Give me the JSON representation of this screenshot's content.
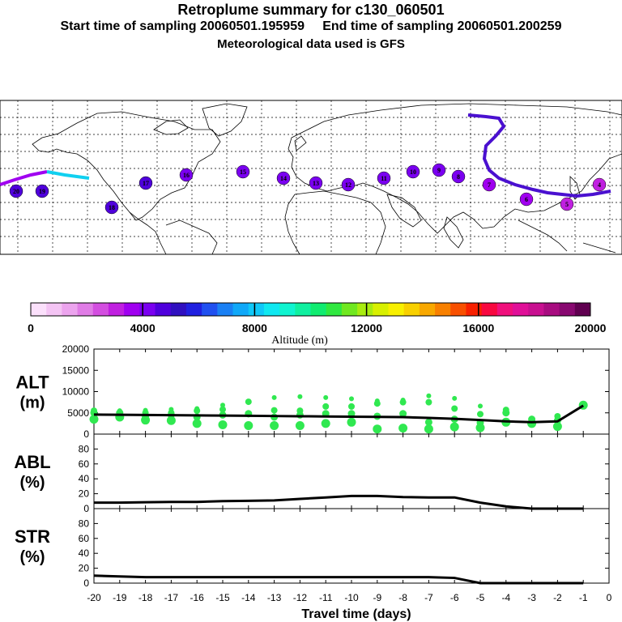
{
  "header": {
    "title": "Retroplume summary for c130_060501",
    "sampling": "Start time of sampling 20060501.195959     End time of sampling 20060501.200259",
    "met": "Meteorological data used is GFS"
  },
  "colorbar": {
    "label": "Altitude (m)",
    "ticks": [
      "0",
      "4000",
      "8000",
      "12000",
      "16000",
      "20000"
    ],
    "colors": [
      "#fbe0fb",
      "#f4c4f4",
      "#eca4ee",
      "#e07ce6",
      "#d34ee0",
      "#c020e0",
      "#a000f0",
      "#7a00f0",
      "#4f00dc",
      "#3010c0",
      "#2020e0",
      "#2050f0",
      "#1a80f4",
      "#10a8f8",
      "#10c8f8",
      "#10e8f0",
      "#10f4d0",
      "#10f0a0",
      "#10ec70",
      "#30e840",
      "#70e820",
      "#a8ec10",
      "#d8f000",
      "#f8f000",
      "#f8d000",
      "#f8a800",
      "#f88000",
      "#f85000",
      "#f82000",
      "#f80840",
      "#f0107c",
      "#e01098",
      "#c81090",
      "#a80c80",
      "#880870",
      "#600050"
    ]
  },
  "chart_data": [
    {
      "type": "line",
      "panel": "ALT",
      "ylabel_lines": [
        "ALT",
        "(m)"
      ],
      "ylim": [
        0,
        20000
      ],
      "yticks": [
        "0",
        "5000",
        "10000",
        "15000",
        "20000"
      ],
      "x": [
        -20,
        -19,
        -18,
        -17,
        -16,
        -15,
        -14,
        -13,
        -12,
        -11,
        -10,
        -9,
        -8,
        -7,
        -6,
        -5,
        -4,
        -3,
        -2,
        -1
      ],
      "series": [
        {
          "name": "mean altitude",
          "values": [
            4600,
            4550,
            4500,
            4450,
            4400,
            4350,
            4300,
            4250,
            4200,
            4150,
            4100,
            4050,
            4000,
            3800,
            3600,
            3300,
            3000,
            2800,
            3000,
            6700
          ]
        }
      ],
      "cluster_altitudes": [
        [
          3500,
          5000,
          5500,
          4000
        ],
        [
          4000,
          5000,
          4500,
          5500
        ],
        [
          3300,
          4200,
          5000,
          5600
        ],
        [
          3200,
          4500,
          5000,
          5800
        ],
        [
          2500,
          4000,
          5500,
          6000
        ],
        [
          2200,
          4500,
          5800,
          6800
        ],
        [
          2000,
          4800,
          7600,
          4500
        ],
        [
          2000,
          4000,
          5600,
          8600
        ],
        [
          2000,
          4500,
          5500,
          8800
        ],
        [
          2500,
          4800,
          6500,
          8600
        ],
        [
          2800,
          4800,
          6500,
          8300
        ],
        [
          1200,
          4200,
          7200,
          7800
        ],
        [
          1400,
          4800,
          7500,
          8000
        ],
        [
          1200,
          2800,
          7500,
          9000
        ],
        [
          1700,
          3500,
          6000,
          8400
        ],
        [
          1500,
          2700,
          4700,
          6600
        ],
        [
          2800,
          5000,
          5700
        ],
        [
          2500,
          3500
        ],
        [
          1800,
          3200,
          4200
        ],
        [
          6800
        ]
      ]
    },
    {
      "type": "line",
      "panel": "ABL",
      "ylabel_lines": [
        "ABL",
        "(%)"
      ],
      "ylim": [
        0,
        100
      ],
      "yticks": [
        "0",
        "20",
        "40",
        "60",
        "80"
      ],
      "x": [
        -20,
        -19,
        -18,
        -17,
        -16,
        -15,
        -14,
        -13,
        -12,
        -11,
        -10,
        -9,
        -8,
        -7,
        -6,
        -5,
        -4,
        -3,
        -2,
        -1
      ],
      "series": [
        {
          "name": "ABL fraction",
          "values": [
            8,
            8,
            8.5,
            9,
            9,
            10,
            10.5,
            11,
            13,
            15,
            17,
            17,
            15.5,
            15,
            15,
            8,
            3,
            0,
            0,
            0
          ]
        }
      ]
    },
    {
      "type": "line",
      "panel": "STR",
      "ylabel_lines": [
        "STR",
        "(%)"
      ],
      "ylim": [
        0,
        100
      ],
      "yticks": [
        "0",
        "20",
        "40",
        "60",
        "80"
      ],
      "xlabel": "Travel time (days)",
      "xticks": [
        "-20",
        "-19",
        "-18",
        "-17",
        "-16",
        "-15",
        "-14",
        "-13",
        "-12",
        "-11",
        "-10",
        "-9",
        "-8",
        "-7",
        "-6",
        "-5",
        "-4",
        "-3",
        "-2",
        "-1",
        "0"
      ],
      "x": [
        -20,
        -19,
        -18,
        -17,
        -16,
        -15,
        -14,
        -13,
        -12,
        -11,
        -10,
        -9,
        -8,
        -7,
        -6,
        -5,
        -4,
        -3,
        -2,
        -1
      ],
      "series": [
        {
          "name": "STR fraction",
          "values": [
            10,
            9,
            8,
            8,
            8,
            8,
            8,
            8,
            8,
            8,
            8,
            8,
            8,
            8,
            7,
            0,
            0,
            0,
            0,
            0
          ]
        }
      ]
    }
  ],
  "map": {
    "marker_labels": [
      "20",
      "19",
      "18",
      "17",
      "16",
      "15",
      "14",
      "13",
      "12",
      "11",
      "10",
      "9",
      "8",
      "7",
      "6",
      "5",
      "4"
    ]
  }
}
